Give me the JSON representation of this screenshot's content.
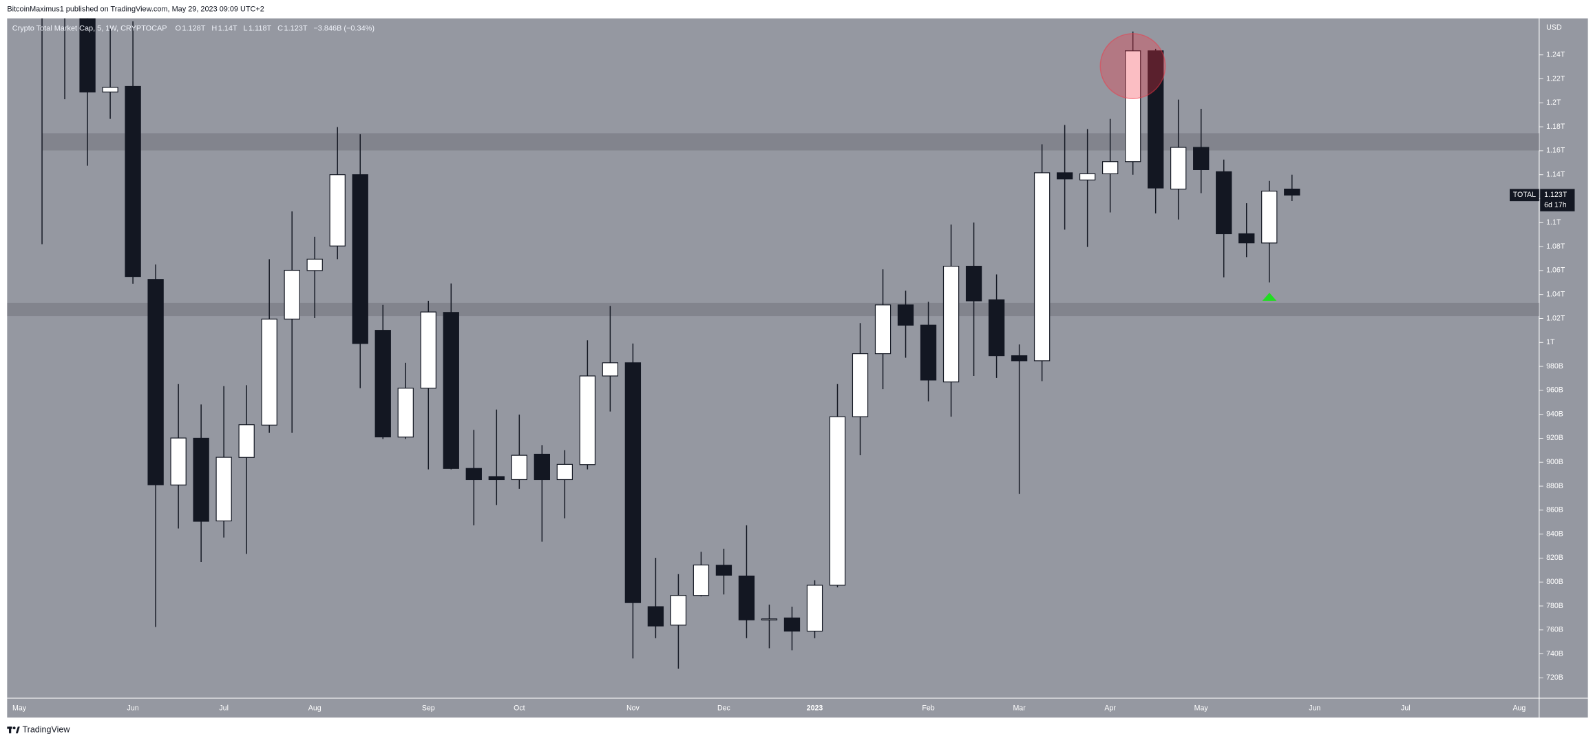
{
  "header": {
    "published": "BitcoinMaximus1 published on TradingView.com, May 29, 2023 09:09 UTC+2"
  },
  "legend": {
    "ohlc": [
      {
        "label": "O",
        "value": "1.128T"
      },
      {
        "label": "H",
        "value": "1.14T"
      },
      {
        "label": "L",
        "value": "1.118T"
      },
      {
        "label": "C",
        "value": "1.123T"
      }
    ],
    "change": "−3.846B (−0.34%)"
  },
  "price_tag": {
    "symbol": "TOTAL",
    "value": "1.123T",
    "countdown": "6d 17h"
  },
  "footer": {
    "brand": "TradingView"
  },
  "chart_data": {
    "type": "candlestick",
    "title": "Crypto Total Market Cap, 5, 1W, CRYPTOCAP",
    "y_unit": "USD",
    "up_color": "#ffffff",
    "down_color": "#131722",
    "grid": false,
    "categories": [
      "May",
      null,
      null,
      null,
      null,
      "Jun",
      null,
      null,
      null,
      "Jul",
      null,
      null,
      null,
      "Aug",
      null,
      null,
      null,
      null,
      "Sep",
      null,
      null,
      null,
      "Oct",
      null,
      null,
      null,
      null,
      "Nov",
      null,
      null,
      null,
      "Dec",
      null,
      null,
      null,
      "2023",
      null,
      null,
      null,
      null,
      "Feb",
      null,
      null,
      null,
      "Mar",
      null,
      null,
      null,
      "Apr",
      null,
      null,
      null,
      "May",
      null,
      null,
      null,
      null,
      "Jun",
      null,
      null,
      null,
      "Jul",
      null,
      null,
      null,
      null,
      "Aug"
    ],
    "open": [
      null,
      1350,
      1300,
      1290,
      1209,
      1213.7,
      1052.6,
      881,
      920,
      851,
      904,
      931,
      1019.5,
      1060,
      1080.5,
      1140,
      1010.1,
      921,
      961.8,
      1025,
      894.8,
      888,
      885.5,
      906.7,
      885.5,
      898,
      972,
      983,
      779.4,
      764,
      788.8,
      814,
      805,
      768.4,
      770,
      759,
      797.3,
      938,
      990.6,
      1031.3,
      1014.4,
      967,
      1063.6,
      1035.6,
      988.9,
      984.7,
      1141.6,
      1135.6,
      1140.8,
      1150.9,
      1243.4,
      1128,
      1162.8,
      1142.5,
      1090.7,
      1083,
      1128,
      null,
      null,
      null,
      null,
      null,
      null,
      null,
      null,
      null,
      null
    ],
    "high": [
      null,
      1390,
      1330,
      1320,
      1262,
      1268,
      1065,
      965.2,
      948.2,
      963.5,
      964.3,
      1069.5,
      1109.4,
      1088.2,
      1179.8,
      1173.8,
      1031.3,
      983,
      1034.7,
      1049.2,
      927,
      944,
      939.7,
      914.3,
      910,
      1001.7,
      1030.5,
      999.1,
      820.2,
      806.6,
      825.2,
      827.8,
      847.3,
      781.1,
      779.4,
      801.5,
      965.2,
      1016.1,
      1061,
      1043.2,
      1033.9,
      1098.4,
      1100,
      1056.8,
      998.3,
      1165.4,
      1181.5,
      1178.1,
      1186.6,
      1259.5,
      1245.1,
      1202.7,
      1195,
      1152.6,
      1116.2,
      1134.8,
      1140,
      null,
      null,
      null,
      null,
      null,
      null,
      null,
      null,
      null,
      null
    ],
    "low": [
      null,
      1082,
      1203,
      1147.5,
      1186.6,
      1049,
      762.5,
      844.7,
      816.8,
      837.1,
      823.5,
      924.5,
      924.5,
      1020.3,
      1069.5,
      961.8,
      919.4,
      919.4,
      894,
      894,
      847.3,
      864.3,
      877.8,
      833.7,
      853.2,
      894,
      942.3,
      736.2,
      753.1,
      727.7,
      788,
      789.6,
      753.1,
      744.7,
      743,
      753.1,
      795.6,
      905.8,
      961,
      987.2,
      950.8,
      938,
      972,
      970.3,
      873.6,
      967.7,
      1094.1,
      1079.7,
      1108.5,
      1140,
      1107.7,
      1102.6,
      1124.6,
      1054.3,
      1071.2,
      1050,
      1118,
      null,
      null,
      null,
      null,
      null,
      null,
      null,
      null,
      null,
      null
    ],
    "close": [
      null,
      1300,
      1290,
      1209,
      1212.9,
      1055,
      881.2,
      920.2,
      850.7,
      904.1,
      931.3,
      1019.5,
      1060.2,
      1069.5,
      1140,
      999.1,
      921.1,
      961.8,
      1025.4,
      894.8,
      885.5,
      885.5,
      905.8,
      885.5,
      898.2,
      972,
      983,
      782.8,
      763.3,
      788.8,
      814.2,
      805.7,
      768.4,
      769.2,
      759,
      797.3,
      938,
      990.6,
      1031.3,
      1014.4,
      968.6,
      1063.6,
      1034.7,
      988.9,
      984.7,
      1141.6,
      1136.5,
      1140.8,
      1150.9,
      1243.4,
      1128.9,
      1162.8,
      1144.2,
      1090.7,
      1083.1,
      1126.3,
      1123,
      null,
      null,
      null,
      null,
      null,
      null,
      null,
      null,
      null,
      null
    ],
    "ylim": [
      703,
      1270.5
    ],
    "yticks": [
      {
        "value": 720,
        "label": "720B"
      },
      {
        "value": 740,
        "label": "740B"
      },
      {
        "value": 760,
        "label": "760B"
      },
      {
        "value": 780,
        "label": "780B"
      },
      {
        "value": 800,
        "label": "800B"
      },
      {
        "value": 820,
        "label": "820B"
      },
      {
        "value": 840,
        "label": "840B"
      },
      {
        "value": 860,
        "label": "860B"
      },
      {
        "value": 880,
        "label": "880B"
      },
      {
        "value": 900,
        "label": "900B"
      },
      {
        "value": 920,
        "label": "920B"
      },
      {
        "value": 940,
        "label": "940B"
      },
      {
        "value": 960,
        "label": "960B"
      },
      {
        "value": 980,
        "label": "980B"
      },
      {
        "value": 1000,
        "label": "1T"
      },
      {
        "value": 1020,
        "label": "1.02T"
      },
      {
        "value": 1040,
        "label": "1.04T"
      },
      {
        "value": 1060,
        "label": "1.06T"
      },
      {
        "value": 1080,
        "label": "1.08T"
      },
      {
        "value": 1100,
        "label": "1.1T"
      },
      {
        "value": 1120,
        "label": "1.12T"
      },
      {
        "value": 1140,
        "label": "1.14T"
      },
      {
        "value": 1160,
        "label": "1.16T"
      },
      {
        "value": 1180,
        "label": "1.18T"
      },
      {
        "value": 1200,
        "label": "1.2T"
      },
      {
        "value": 1220,
        "label": "1.22T"
      },
      {
        "value": 1240,
        "label": "1.24T"
      }
    ]
  }
}
